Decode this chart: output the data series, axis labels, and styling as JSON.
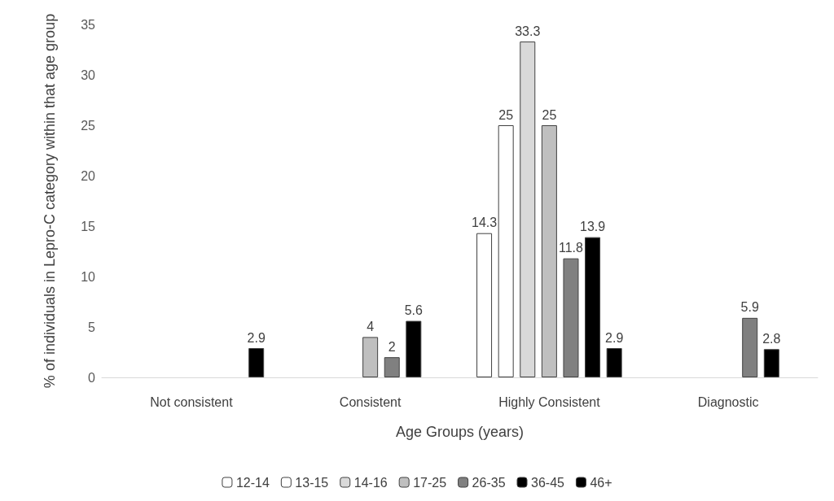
{
  "chart_data": {
    "type": "bar",
    "xlabel": "Age Groups (years)",
    "ylabel": "% of individuals in Lepro-C category within that age group",
    "categories": [
      "Not consistent",
      "Consistent",
      "Highly Consistent",
      "Diagnostic"
    ],
    "series": [
      {
        "name": "12-14",
        "color": "#ffffff",
        "values": [
          null,
          null,
          14.3,
          null
        ]
      },
      {
        "name": "13-15",
        "color": "#ffffff",
        "values": [
          null,
          null,
          25,
          null
        ]
      },
      {
        "name": "14-16",
        "color": "#d9d9d9",
        "values": [
          null,
          null,
          33.3,
          null
        ]
      },
      {
        "name": "17-25",
        "color": "#bfbfbf",
        "values": [
          null,
          4,
          25,
          null
        ]
      },
      {
        "name": "26-35",
        "color": "#808080",
        "values": [
          null,
          2,
          11.8,
          5.9
        ]
      },
      {
        "name": "36-45",
        "color": "#000000",
        "values": [
          null,
          5.6,
          13.9,
          2.8
        ]
      },
      {
        "name": "46+",
        "color": "#000000",
        "values": [
          2.9,
          null,
          2.9,
          null
        ]
      }
    ],
    "ylim": [
      0,
      35
    ],
    "yticks": [
      0,
      5,
      10,
      15,
      20,
      25,
      30,
      35
    ],
    "grid": false,
    "legend": "bottom",
    "data_labels": true
  }
}
